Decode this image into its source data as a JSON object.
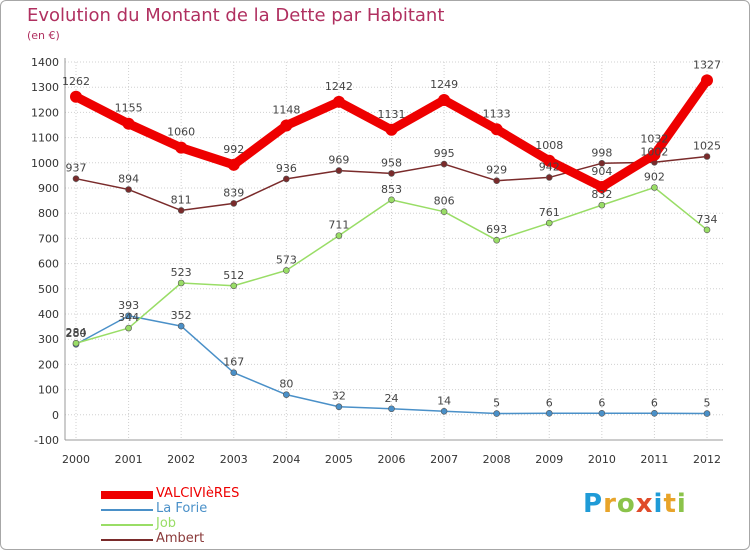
{
  "title": "Evolution du Montant de la Dette par Habitant",
  "unit_label": "(en €)",
  "logo": {
    "text": "Proxiti",
    "letter_colors": [
      "#1f9bd7",
      "#e8a42a",
      "#8bc34a",
      "#e04b2a",
      "#1f9bd7",
      "#e8a42a",
      "#8bc34a"
    ]
  },
  "chart_data": {
    "type": "line",
    "x": [
      "2000",
      "2001",
      "2002",
      "2003",
      "2004",
      "2005",
      "2006",
      "2007",
      "2008",
      "2009",
      "2010",
      "2011",
      "2012"
    ],
    "ylim": [
      -100,
      1400
    ],
    "yticks": [
      "-100",
      "0",
      "100",
      "200",
      "300",
      "400",
      "500",
      "600",
      "700",
      "800",
      "900",
      "1000",
      "1100",
      "1200",
      "1300",
      "1400"
    ],
    "grid": true,
    "legend_position": "bottom-left",
    "series": [
      {
        "name": "VALCIVIèRES",
        "color": "#ee0000",
        "style": "thick",
        "values": [
          1262,
          1155,
          1060,
          992,
          1148,
          1242,
          1131,
          1249,
          1133,
          1008,
          904,
          1032,
          1327
        ]
      },
      {
        "name": "La Forie",
        "color": "#4a90c8",
        "style": "thin",
        "values": [
          280,
          393,
          352,
          167,
          80,
          32,
          24,
          14,
          5,
          6,
          6,
          6,
          5
        ]
      },
      {
        "name": "Job",
        "color": "#99dd66",
        "style": "thin",
        "values": [
          284,
          344,
          523,
          512,
          573,
          711,
          853,
          806,
          693,
          761,
          832,
          902,
          734
        ]
      },
      {
        "name": "Ambert",
        "color": "#7a2b2b",
        "style": "thin",
        "values": [
          937,
          894,
          811,
          839,
          936,
          969,
          958,
          995,
          929,
          942,
          998,
          1002,
          1025
        ]
      }
    ]
  }
}
